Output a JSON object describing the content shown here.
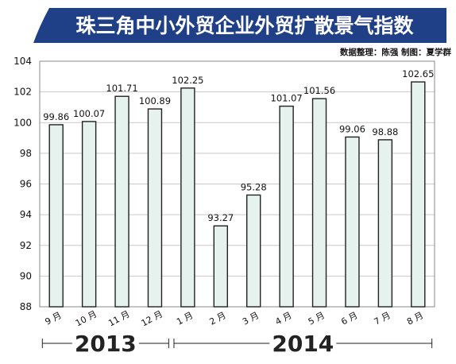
{
  "header": {
    "title": "珠三角中小外贸企业外贸扩散景气指数",
    "credit": "数据整理：陈强  制图：夏学群",
    "banner_color": "#1f3f86"
  },
  "chart_data": {
    "type": "bar",
    "title": "珠三角中小外贸企业外贸扩散景气指数",
    "categories": [
      "9 月",
      "10 月",
      "11 月",
      "12 月",
      "1 月",
      "2 月",
      "3 月",
      "4 月",
      "5 月",
      "6 月",
      "7 月",
      "8 月"
    ],
    "values": [
      99.86,
      100.07,
      101.71,
      100.89,
      102.25,
      93.27,
      95.28,
      101.07,
      101.56,
      99.06,
      98.88,
      102.65
    ],
    "value_labels": [
      "99.86",
      "100.07",
      "101.71",
      "100.89",
      "102.25",
      "93.27",
      "95.28",
      "101.07",
      "101.56",
      "99.06",
      "98.88",
      "102.65"
    ],
    "ylim": [
      88,
      104
    ],
    "yticks": [
      "88",
      "90",
      "92",
      "94",
      "96",
      "98",
      "100",
      "102",
      "104"
    ],
    "year_groups": [
      {
        "label": "2013",
        "from": 0,
        "to": 3
      },
      {
        "label": "2014",
        "from": 4,
        "to": 11
      }
    ],
    "grid": true,
    "bar_color": "#e6f2ed",
    "bar_edge": "#222222"
  }
}
